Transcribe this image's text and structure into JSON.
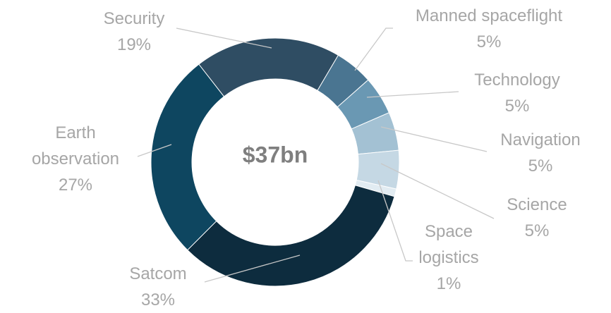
{
  "chart_data": {
    "type": "donut",
    "center_label": "$37bn",
    "categories": [
      "Manned spaceflight",
      "Technology",
      "Navigation",
      "Science",
      "Space logistics",
      "Satcom",
      "Earth observation",
      "Security"
    ],
    "values": [
      5,
      5,
      5,
      5,
      1,
      33,
      27,
      19
    ],
    "value_labels": [
      "5%",
      "5%",
      "5%",
      "5%",
      "1%",
      "33%",
      "27%",
      "19%"
    ],
    "colors": [
      "#4a7591",
      "#6a98b3",
      "#a3c1d3",
      "#c5d8e4",
      "#e2ecf2",
      "#0d2c3e",
      "#0e4660",
      "#2f4d63"
    ]
  }
}
